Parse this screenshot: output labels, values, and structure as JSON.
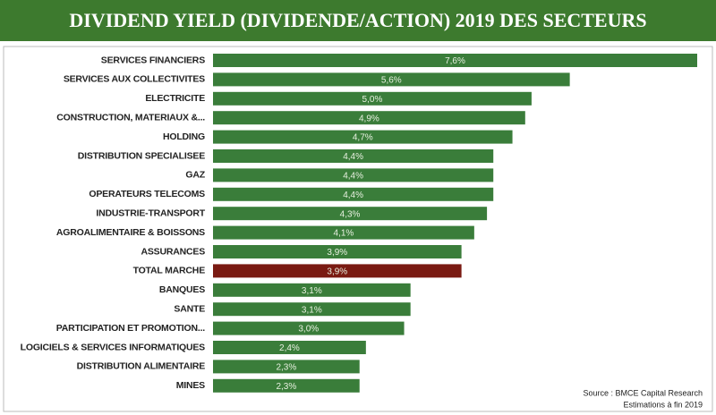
{
  "chart_data": {
    "type": "barh",
    "title": "DIVIDEND YIELD (DIVIDENDE/ACTION) 2019 DES SECTEURS",
    "categories": [
      "SERVICES FINANCIERS",
      "SERVICES AUX COLLECTIVITES",
      "ELECTRICITE",
      "CONSTRUCTION, MATERIAUX &...",
      "HOLDING",
      "DISTRIBUTION SPECIALISEE",
      "GAZ",
      "OPERATEURS TELECOMS",
      "INDUSTRIE-TRANSPORT",
      "AGROALIMENTAIRE & BOISSONS",
      "ASSURANCES",
      "TOTAL MARCHE",
      "BANQUES",
      "SANTE",
      "PARTICIPATION ET PROMOTION...",
      "LOGICIELS & SERVICES INFORMATIQUES",
      "DISTRIBUTION ALIMENTAIRE",
      "MINES"
    ],
    "values": [
      7.6,
      5.6,
      5.0,
      4.9,
      4.7,
      4.4,
      4.4,
      4.4,
      4.3,
      4.1,
      3.9,
      3.9,
      3.1,
      3.1,
      3.0,
      2.4,
      2.3,
      2.3
    ],
    "value_labels": [
      "7,6%",
      "5,6%",
      "5,0%",
      "4,9%",
      "4,7%",
      "4,4%",
      "4,4%",
      "4,4%",
      "4,3%",
      "4,1%",
      "3,9%",
      "3,9%",
      "3,1%",
      "3,1%",
      "3,0%",
      "2,4%",
      "2,3%",
      "2,3%"
    ],
    "colors": [
      "#3a7d3a",
      "#3a7d3a",
      "#3a7d3a",
      "#3a7d3a",
      "#3a7d3a",
      "#3a7d3a",
      "#3a7d3a",
      "#3a7d3a",
      "#3a7d3a",
      "#3a7d3a",
      "#3a7d3a",
      "#7a1a12",
      "#3a7d3a",
      "#3a7d3a",
      "#3a7d3a",
      "#3a7d3a",
      "#3a7d3a",
      "#3a7d3a"
    ],
    "source": [
      "Source : BMCE Capital Research",
      "Estimations à fin 2019"
    ]
  }
}
